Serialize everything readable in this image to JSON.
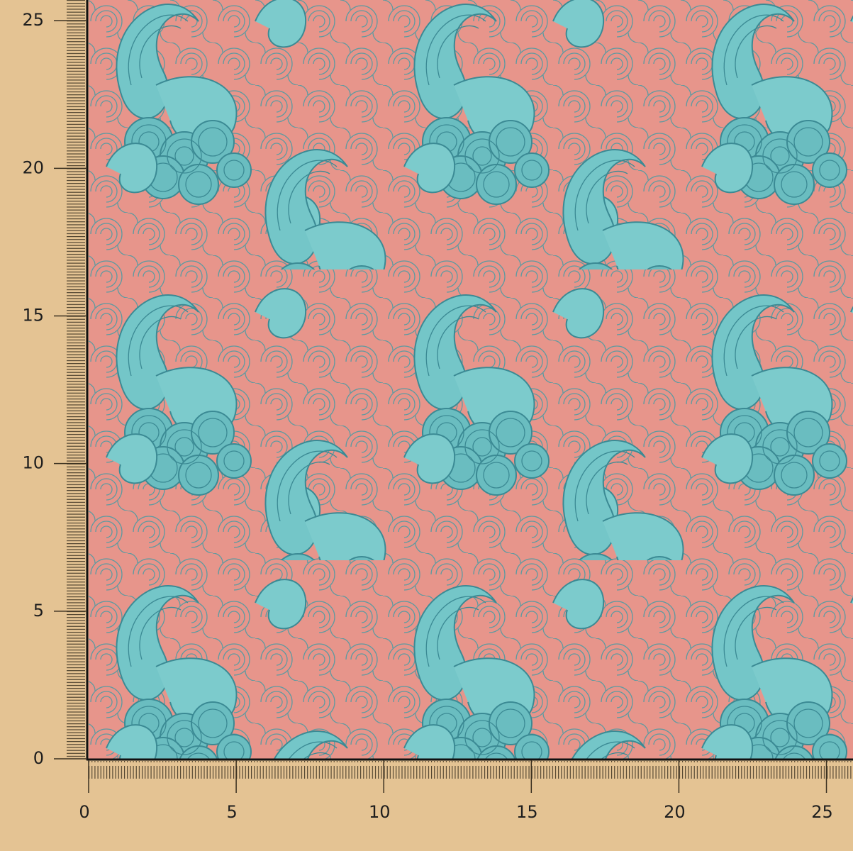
{
  "ruler": {
    "x": {
      "lim": [
        0,
        25.9
      ],
      "ticks": [
        0,
        5,
        10,
        15,
        20,
        25
      ]
    },
    "y": {
      "lim": [
        0,
        25.7
      ],
      "ticks": [
        0,
        5,
        10,
        15,
        20,
        25
      ]
    }
  }
}
